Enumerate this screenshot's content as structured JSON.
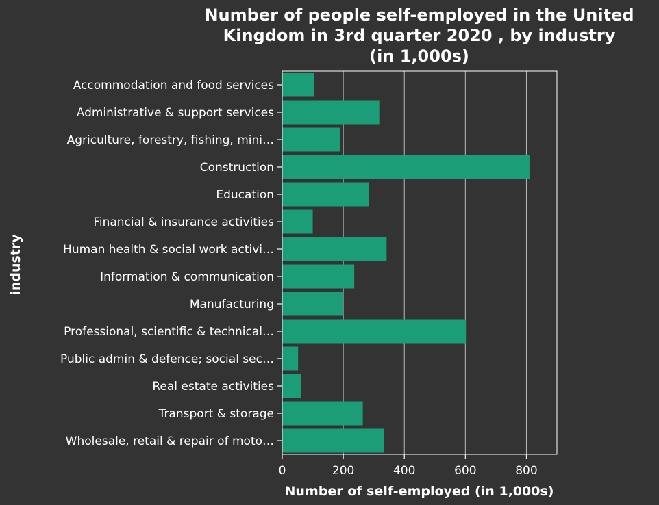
{
  "chart_data": {
    "type": "bar",
    "orientation": "horizontal",
    "title": [
      "Number of people self-employed in the United",
      "Kingdom in 3rd quarter 2020 , by industry",
      "(in 1,000s)"
    ],
    "xlabel": "Number of self-employed (in 1,000s)",
    "ylabel": "industry",
    "xlim": [
      0,
      900
    ],
    "xticks": [
      0,
      200,
      400,
      600,
      800
    ],
    "grid": "vertical",
    "bar_color": "#1b9e77",
    "categories": [
      "Accommodation and food services",
      "Administrative & support services",
      "Agriculture, forestry, fishing, mini…",
      "Construction",
      "Education",
      "Financial & insurance activities",
      "Human health & social work activi…",
      "Information & communication",
      "Manufacturing",
      "Professional, scientific & technical…",
      "Public admin & defence; social sec…",
      "Real estate activities",
      "Transport & storage",
      "Wholesale, retail & repair of moto…"
    ],
    "values": [
      105,
      318,
      190,
      810,
      283,
      100,
      342,
      236,
      200,
      602,
      52,
      62,
      264,
      333
    ]
  }
}
